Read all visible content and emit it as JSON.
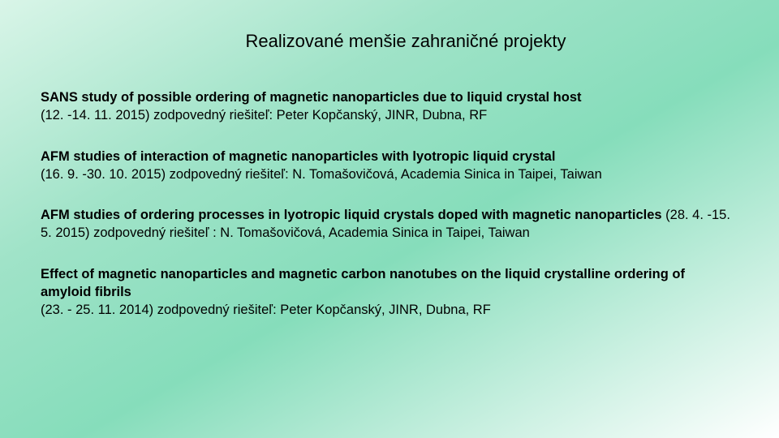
{
  "background": {
    "gradient_from": "#d9f5e8",
    "gradient_mid1": "#a0e3c8",
    "gradient_mid2": "#86ddbb",
    "gradient_to": "#ffffff"
  },
  "typography": {
    "title_fontsize": 22,
    "body_fontsize": 16.5,
    "font_family": "Arial",
    "title_color": "#000000",
    "body_color": "#000000"
  },
  "title": "Realizované menšie zahraničné projekty",
  "projects": [
    {
      "heading": "SANS study of possible ordering of magnetic nanoparticles due to liquid crystal host",
      "detail": "(12. -14. 11. 2015)  zodpovedný riešiteľ: Peter Kopčanský, JINR, Dubna, RF"
    },
    {
      "heading": "AFM studies of interaction of magnetic nanoparticles with lyotropic liquid crystal",
      "detail": "(16. 9. -30. 10. 2015)  zodpovedný riešiteľ: N. Tomašovičová,  Academia Sinica in Taipei, Taiwan"
    },
    {
      "heading": "AFM studies of ordering processes in lyotropic liquid crystals doped with magnetic nanoparticles",
      "detail": " (28. 4. -15. 5. 2015) zodpovedný riešiteľ : N. Tomašovičová, Academia Sinica in Taipei, Taiwan",
      "inline": true
    },
    {
      "heading": "Effect of magnetic nanoparticles and magnetic carbon nanotubes on the liquid crystalline ordering of amyloid fibrils",
      "detail": "(23. - 25. 11. 2014) zodpovedný riešiteľ: Peter Kopčanský, JINR, Dubna, RF"
    }
  ]
}
